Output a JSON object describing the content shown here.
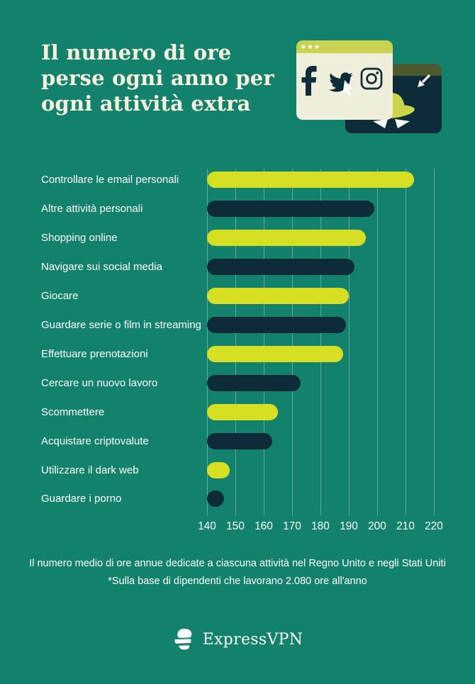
{
  "page": {
    "background_color": "#12826C"
  },
  "header": {
    "title": "Il numero di ore perse ogni anno per ogni attività extra",
    "title_lines": [
      "Il numero di ore",
      "perse ogni anno per",
      "ogni attività extra"
    ],
    "illustration_icons": [
      "facebook-icon",
      "twitter-icon",
      "instagram-icon",
      "cursor-icon",
      "spy-hat-icon"
    ]
  },
  "chart_data": {
    "type": "bar",
    "orientation": "horizontal",
    "title": "Il numero di ore perse ogni anno per ogni attività extra",
    "categories": [
      "Controllare le email personali",
      "Altre attività personali",
      "Shopping online",
      "Navigare sui social media",
      "Giocare",
      "Guardare serie o film in streaming",
      "Effettuare prenotazioni",
      "Cercare un nuovo lavoro",
      "Scommettere",
      "Acquistare criptovalute",
      "Utilizzare il dark web",
      "Guardare i porno"
    ],
    "values": [
      213,
      199,
      196,
      192,
      190,
      189,
      188,
      173,
      165,
      163,
      148,
      146
    ],
    "unit": "ore all'anno",
    "xlim": [
      140,
      220
    ],
    "x_ticks": [
      "140",
      "150",
      "160",
      "170",
      "180",
      "190",
      "200",
      "210",
      "220"
    ],
    "grid": "vertical",
    "legend": "none",
    "bar_colors": {
      "odd_rows": "#D6DF22",
      "even_rows": "#0D2B38"
    },
    "gridline_color": "rgba(255,255,255,0.32)"
  },
  "footer": {
    "caption": "Il numero medio di ore annue dedicate a ciascuna attività nel Regno Unito e negli Stati Uniti",
    "note": "*Sulla base di dipendenti che lavorano 2.080 ore all'anno",
    "brand": "ExpressVPN"
  },
  "colors": {
    "background": "#12826C",
    "bar_yellow": "#D6DF22",
    "bar_navy": "#0D2B38",
    "cream": "#EFEEDB",
    "lime_titlebar": "#C8D350",
    "olive_titlebar": "#4C5A30",
    "title_text": "#F9F1DE",
    "label_text": "#FFFFFF"
  }
}
